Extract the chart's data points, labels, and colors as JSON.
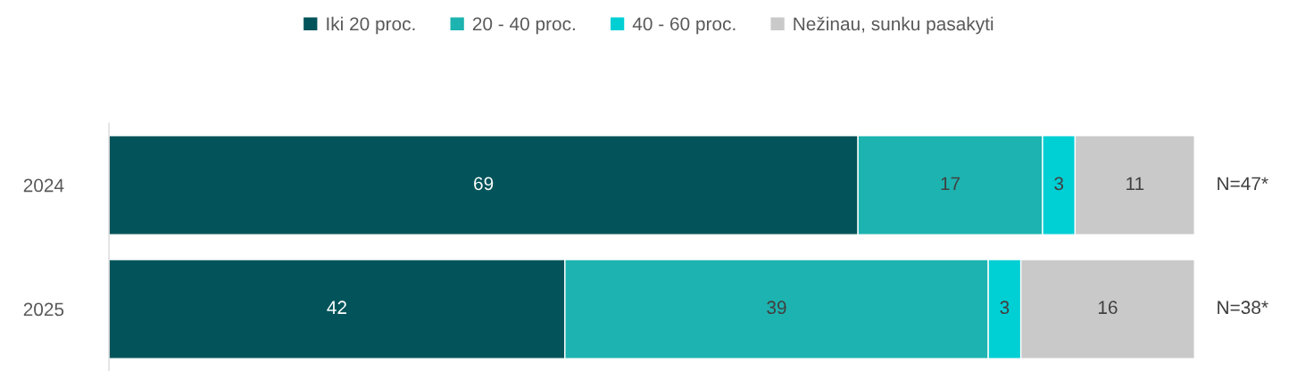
{
  "chart_data": {
    "type": "bar",
    "orientation": "horizontal",
    "stacked": true,
    "categories": [
      "2024",
      "2025"
    ],
    "series": [
      {
        "name": "Iki 20 proc.",
        "color": "#02545a",
        "values": [
          69,
          42
        ]
      },
      {
        "name": "20 - 40 proc.",
        "color": "#1db3b0",
        "values": [
          17,
          39
        ]
      },
      {
        "name": "40 - 60 proc.",
        "color": "#00cfd4",
        "values": [
          3,
          3
        ]
      },
      {
        "name": "Nežinau, sunku pasakyti",
        "color": "#c9c9c9",
        "values": [
          11,
          16
        ]
      }
    ],
    "xlim": [
      0,
      100
    ],
    "data_labels": true,
    "legend": "top",
    "tick_labels": "y",
    "annotations": [
      "N=47*",
      "N=38*"
    ]
  }
}
